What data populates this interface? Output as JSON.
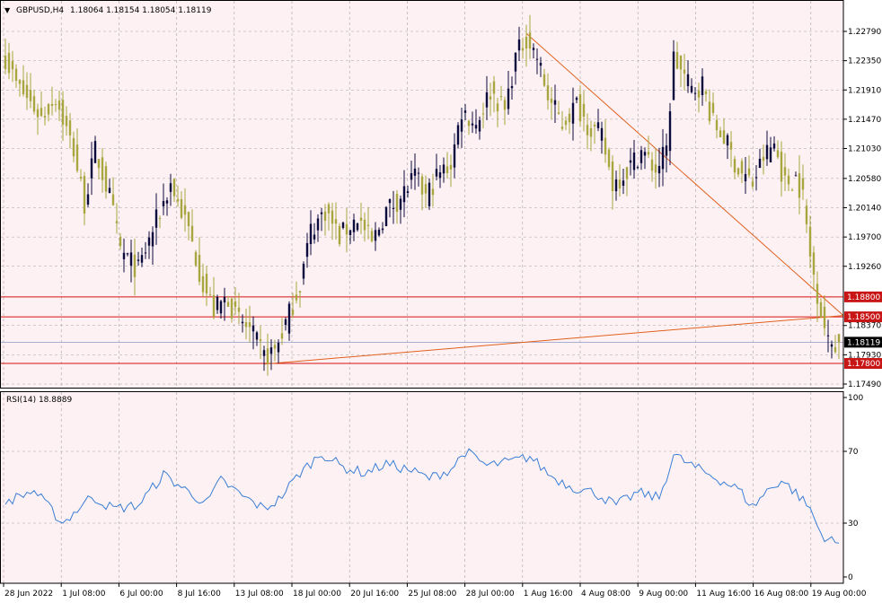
{
  "header": {
    "symbol": "GBPUSD,H4",
    "ohlc": "1.18064 1.18154 1.18054 1.18119"
  },
  "rsi_header": "RSI(14) 18.8889",
  "colors": {
    "background": "#fdf1f4",
    "grid": "#a3a3a3",
    "bull_candle": "#0a0a3c",
    "bear_candle": "#a8a63e",
    "level_line": "#d81010",
    "trend_line": "#e0601c",
    "price_tag": "#c81616",
    "current_tag": "#000000",
    "rsi_line": "#3a7ed6",
    "bid_line": "#8e98c8"
  },
  "price_axis": {
    "labels": [
      "1.22790",
      "1.22350",
      "1.21910",
      "1.21470",
      "1.21030",
      "1.20580",
      "1.20140",
      "1.19700",
      "1.19260",
      "1.18370",
      "1.17930",
      "1.17490"
    ],
    "min": 1.1749,
    "max": 1.2279
  },
  "levels": [
    {
      "label": "1.18800",
      "value": 1.188
    },
    {
      "label": "1.18500",
      "value": 1.185
    },
    {
      "label": "1.17800",
      "value": 1.178
    }
  ],
  "current_price": {
    "label": "1.18119",
    "value": 1.18119
  },
  "rsi_axis": {
    "labels": [
      "100",
      "70",
      "30",
      "0"
    ],
    "values": [
      100,
      70,
      30,
      0
    ]
  },
  "time_axis": {
    "labels": [
      "28 Jun 2022",
      "1 Jul 08:00",
      "6 Jul 00:00",
      "8 Jul 16:00",
      "13 Jul 08:00",
      "18 Jul 00:00",
      "20 Jul 16:00",
      "25 Jul 08:00",
      "28 Jul 00:00",
      "1 Aug 16:00",
      "4 Aug 08:00",
      "9 Aug 00:00",
      "11 Aug 16:00",
      "16 Aug 08:00",
      "19 Aug 00:00"
    ]
  },
  "chart_data": {
    "type": "candlestick",
    "symbol": "GBPUSD",
    "timeframe": "H4",
    "ylim": [
      1.1749,
      1.2279
    ],
    "anchors": [
      {
        "bar": 0,
        "price": 1.224
      },
      {
        "bar": 3,
        "price": 1.22
      },
      {
        "bar": 10,
        "price": 1.215
      },
      {
        "bar": 14,
        "price": 1.218
      },
      {
        "bar": 19,
        "price": 1.21
      },
      {
        "bar": 22,
        "price": 1.202
      },
      {
        "bar": 25,
        "price": 1.21
      },
      {
        "bar": 29,
        "price": 1.203
      },
      {
        "bar": 32,
        "price": 1.195
      },
      {
        "bar": 37,
        "price": 1.192
      },
      {
        "bar": 41,
        "price": 1.198
      },
      {
        "bar": 46,
        "price": 1.205
      },
      {
        "bar": 51,
        "price": 1.198
      },
      {
        "bar": 55,
        "price": 1.19
      },
      {
        "bar": 58,
        "price": 1.186
      },
      {
        "bar": 62,
        "price": 1.188
      },
      {
        "bar": 64,
        "price": 1.185
      },
      {
        "bar": 68,
        "price": 1.183
      },
      {
        "bar": 72,
        "price": 1.179
      },
      {
        "bar": 75,
        "price": 1.18
      },
      {
        "bar": 78,
        "price": 1.184
      },
      {
        "bar": 82,
        "price": 1.19
      },
      {
        "bar": 85,
        "price": 1.198
      },
      {
        "bar": 89,
        "price": 1.201
      },
      {
        "bar": 93,
        "price": 1.197
      },
      {
        "bar": 98,
        "price": 1.2
      },
      {
        "bar": 102,
        "price": 1.196
      },
      {
        "bar": 106,
        "price": 1.201
      },
      {
        "bar": 110,
        "price": 1.203
      },
      {
        "bar": 114,
        "price": 1.206
      },
      {
        "bar": 117,
        "price": 1.203
      },
      {
        "bar": 120,
        "price": 1.206
      },
      {
        "bar": 124,
        "price": 1.208
      },
      {
        "bar": 127,
        "price": 1.216
      },
      {
        "bar": 131,
        "price": 1.214
      },
      {
        "bar": 135,
        "price": 1.219
      },
      {
        "bar": 139,
        "price": 1.216
      },
      {
        "bar": 142,
        "price": 1.224
      },
      {
        "bar": 145,
        "price": 1.227
      },
      {
        "bar": 148,
        "price": 1.224
      },
      {
        "bar": 151,
        "price": 1.218
      },
      {
        "bar": 155,
        "price": 1.214
      },
      {
        "bar": 159,
        "price": 1.217
      },
      {
        "bar": 162,
        "price": 1.214
      },
      {
        "bar": 166,
        "price": 1.212
      },
      {
        "bar": 169,
        "price": 1.205
      },
      {
        "bar": 173,
        "price": 1.207
      },
      {
        "bar": 177,
        "price": 1.21
      },
      {
        "bar": 181,
        "price": 1.207
      },
      {
        "bar": 184,
        "price": 1.21
      },
      {
        "bar": 186,
        "price": 1.224
      },
      {
        "bar": 188,
        "price": 1.222
      },
      {
        "bar": 191,
        "price": 1.219
      },
      {
        "bar": 194,
        "price": 1.22
      },
      {
        "bar": 197,
        "price": 1.214
      },
      {
        "bar": 200,
        "price": 1.212
      },
      {
        "bar": 204,
        "price": 1.207
      },
      {
        "bar": 208,
        "price": 1.205
      },
      {
        "bar": 211,
        "price": 1.209
      },
      {
        "bar": 214,
        "price": 1.211
      },
      {
        "bar": 217,
        "price": 1.205
      },
      {
        "bar": 220,
        "price": 1.206
      },
      {
        "bar": 222,
        "price": 1.203
      },
      {
        "bar": 224,
        "price": 1.194
      },
      {
        "bar": 227,
        "price": 1.186
      },
      {
        "bar": 229,
        "price": 1.181
      },
      {
        "bar": 232,
        "price": 1.1812
      }
    ],
    "rsi": {
      "period": 14,
      "last": 18.8889,
      "ylim": [
        0,
        100
      ],
      "anchors": [
        {
          "bar": 0,
          "value": 42
        },
        {
          "bar": 8,
          "value": 48
        },
        {
          "bar": 16,
          "value": 30
        },
        {
          "bar": 24,
          "value": 45
        },
        {
          "bar": 30,
          "value": 38
        },
        {
          "bar": 37,
          "value": 40
        },
        {
          "bar": 44,
          "value": 57
        },
        {
          "bar": 52,
          "value": 46
        },
        {
          "bar": 56,
          "value": 41
        },
        {
          "bar": 60,
          "value": 54
        },
        {
          "bar": 66,
          "value": 45
        },
        {
          "bar": 72,
          "value": 38
        },
        {
          "bar": 76,
          "value": 43
        },
        {
          "bar": 82,
          "value": 58
        },
        {
          "bar": 88,
          "value": 69
        },
        {
          "bar": 94,
          "value": 61
        },
        {
          "bar": 100,
          "value": 58
        },
        {
          "bar": 106,
          "value": 63
        },
        {
          "bar": 112,
          "value": 60
        },
        {
          "bar": 118,
          "value": 55
        },
        {
          "bar": 124,
          "value": 60
        },
        {
          "bar": 128,
          "value": 70
        },
        {
          "bar": 134,
          "value": 62
        },
        {
          "bar": 140,
          "value": 64
        },
        {
          "bar": 146,
          "value": 67
        },
        {
          "bar": 152,
          "value": 56
        },
        {
          "bar": 158,
          "value": 50
        },
        {
          "bar": 164,
          "value": 47
        },
        {
          "bar": 170,
          "value": 40
        },
        {
          "bar": 176,
          "value": 47
        },
        {
          "bar": 182,
          "value": 44
        },
        {
          "bar": 186,
          "value": 68
        },
        {
          "bar": 192,
          "value": 61
        },
        {
          "bar": 198,
          "value": 55
        },
        {
          "bar": 204,
          "value": 49
        },
        {
          "bar": 208,
          "value": 39
        },
        {
          "bar": 212,
          "value": 48
        },
        {
          "bar": 216,
          "value": 54
        },
        {
          "bar": 220,
          "value": 47
        },
        {
          "bar": 224,
          "value": 38
        },
        {
          "bar": 227,
          "value": 24
        },
        {
          "bar": 230,
          "value": 20
        },
        {
          "bar": 232,
          "value": 18.9
        }
      ]
    }
  }
}
